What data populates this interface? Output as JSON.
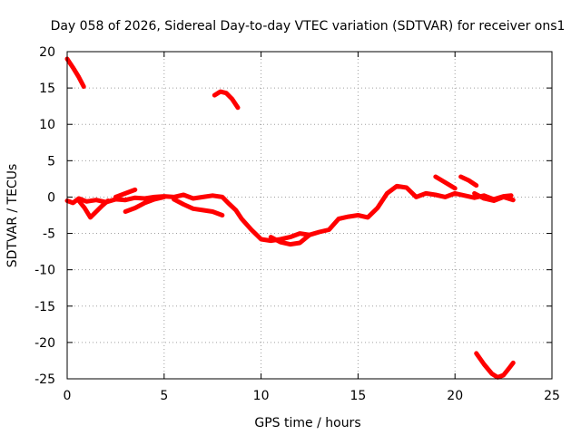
{
  "chart_data": {
    "type": "line",
    "title": "Day 058 of 2026, Sidereal Day-to-day VTEC variation (SDTVAR) for receiver ons1",
    "xlabel": "GPS time / hours",
    "ylabel": "SDTVAR / TECUs",
    "xlim": [
      0,
      25
    ],
    "ylim": [
      -25,
      20
    ],
    "xticks": [
      0,
      5,
      10,
      15,
      20,
      25
    ],
    "yticks": [
      -25,
      -20,
      -15,
      -10,
      -5,
      0,
      5,
      10,
      15,
      20
    ],
    "grid": true,
    "series_color": "#ff0000",
    "series": [
      {
        "name": "main-trace",
        "x": [
          0.0,
          0.3,
          0.6,
          1.0,
          1.5,
          2.0,
          2.5,
          3.0,
          3.5,
          4.0,
          4.5,
          5.0,
          5.5,
          6.0,
          6.5,
          7.0,
          7.5,
          8.0,
          8.3,
          8.7,
          9.0,
          9.5,
          10.0,
          10.5,
          11.0,
          11.5,
          12.0,
          12.5,
          13.0,
          13.5,
          14.0,
          14.5,
          15.0,
          15.5,
          16.0,
          16.5,
          17.0,
          17.5,
          18.0,
          18.5,
          19.0,
          19.5,
          20.0,
          20.5,
          21.0,
          21.5,
          22.0,
          22.5,
          22.9
        ],
        "y": [
          -0.5,
          -0.8,
          -0.2,
          -0.6,
          -0.4,
          -0.7,
          -0.3,
          -0.4,
          -0.1,
          -0.2,
          0.0,
          0.1,
          0.0,
          0.3,
          -0.2,
          0.0,
          0.2,
          0.0,
          -0.8,
          -1.8,
          -3.0,
          -4.5,
          -5.8,
          -6.0,
          -5.8,
          -5.5,
          -5.0,
          -5.2,
          -4.8,
          -4.5,
          -3.0,
          -2.7,
          -2.5,
          -2.8,
          -1.5,
          0.5,
          1.5,
          1.3,
          0.0,
          0.5,
          0.3,
          0.0,
          0.5,
          0.2,
          -0.1,
          0.2,
          -0.3,
          0.1,
          0.2
        ]
      },
      {
        "name": "band-lower-left",
        "x": [
          0.6,
          0.9,
          1.2,
          1.5,
          1.8,
          2.1
        ],
        "y": [
          -0.5,
          -1.5,
          -2.8,
          -2.0,
          -1.2,
          -0.5
        ]
      },
      {
        "name": "band-mid-low",
        "x": [
          3.0,
          3.5,
          4.0,
          4.5,
          5.0
        ],
        "y": [
          -2.0,
          -1.5,
          -0.8,
          -0.3,
          0.0
        ]
      },
      {
        "name": "band-upper-left",
        "x": [
          2.5,
          3.0,
          3.5
        ],
        "y": [
          0.0,
          0.5,
          1.0
        ]
      },
      {
        "name": "band-six-to-eight",
        "x": [
          5.5,
          6.0,
          6.5,
          7.0,
          7.5,
          8.0
        ],
        "y": [
          -0.3,
          -1.0,
          -1.6,
          -1.8,
          -2.0,
          -2.5
        ]
      },
      {
        "name": "band-dip-twelve",
        "x": [
          10.5,
          11.0,
          11.5,
          12.0,
          12.5
        ],
        "y": [
          -5.5,
          -6.2,
          -6.5,
          -6.3,
          -5.2
        ]
      },
      {
        "name": "band-nineteen-upper",
        "x": [
          19.0,
          19.5,
          20.0
        ],
        "y": [
          2.8,
          2.0,
          1.2
        ]
      },
      {
        "name": "band-twenty-one",
        "x": [
          20.3,
          20.7,
          21.1
        ],
        "y": [
          2.8,
          2.3,
          1.6
        ]
      },
      {
        "name": "band-twenty-two",
        "x": [
          21.0,
          21.5,
          22.0,
          22.5,
          23.0
        ],
        "y": [
          0.5,
          -0.2,
          -0.5,
          0.0,
          -0.4
        ]
      },
      {
        "name": "arc-start",
        "x": [
          0.0,
          0.3,
          0.6,
          0.85
        ],
        "y": [
          19.0,
          17.8,
          16.5,
          15.2
        ]
      },
      {
        "name": "arc-eight",
        "x": [
          7.6,
          7.9,
          8.2,
          8.5,
          8.8
        ],
        "y": [
          14.0,
          14.5,
          14.3,
          13.5,
          12.3
        ]
      },
      {
        "name": "arc-twenty-two",
        "x": [
          21.1,
          21.5,
          21.9,
          22.2,
          22.5,
          22.8,
          23.0
        ],
        "y": [
          -21.5,
          -23.0,
          -24.3,
          -24.8,
          -24.5,
          -23.5,
          -22.8
        ]
      }
    ]
  }
}
